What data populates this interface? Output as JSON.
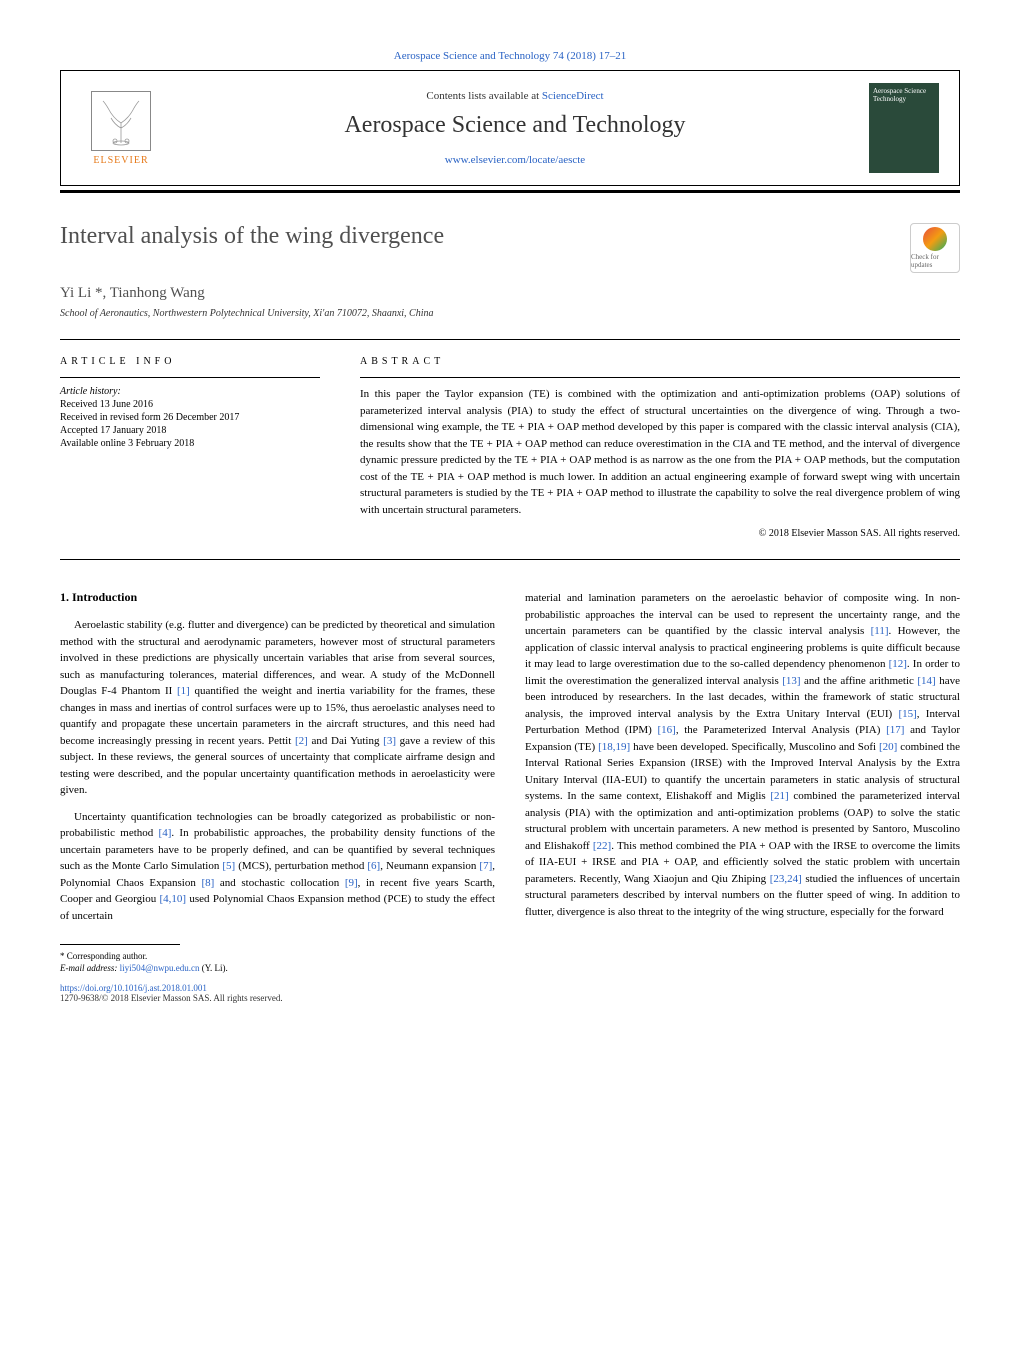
{
  "top_citation": "Aerospace Science and Technology 74 (2018) 17–21",
  "header": {
    "elsevier_label": "ELSEVIER",
    "contents_prefix": "Contents lists available at ",
    "contents_link": "ScienceDirect",
    "journal_name": "Aerospace Science and Technology",
    "journal_url": "www.elsevier.com/locate/aescte",
    "cover_text": "Aerospace Science Technology"
  },
  "crossmark": {
    "label": "Check for updates"
  },
  "article": {
    "title": "Interval analysis of the wing divergence",
    "authors": "Yi Li *, Tianhong Wang",
    "affiliation": "School of Aeronautics, Northwestern Polytechnical University, Xi'an 710072, Shaanxi, China"
  },
  "info": {
    "heading": "ARTICLE INFO",
    "history_label": "Article history:",
    "received": "Received 13 June 2016",
    "revised": "Received in revised form 26 December 2017",
    "accepted": "Accepted 17 January 2018",
    "online": "Available online 3 February 2018"
  },
  "abstract": {
    "heading": "ABSTRACT",
    "text": "In this paper the Taylor expansion (TE) is combined with the optimization and anti-optimization problems (OAP) solutions of parameterized interval analysis (PIA) to study the effect of structural uncertainties on the divergence of wing. Through a two-dimensional wing example, the TE + PIA + OAP method developed by this paper is compared with the classic interval analysis (CIA), the results show that the TE + PIA + OAP method can reduce overestimation in the CIA and TE method, and the interval of divergence dynamic pressure predicted by the TE + PIA + OAP method is as narrow as the one from the PIA + OAP methods, but the computation cost of the TE + PIA + OAP method is much lower. In addition an actual engineering example of forward swept wing with uncertain structural parameters is studied by the TE + PIA + OAP method to illustrate the capability to solve the real divergence problem of wing with uncertain structural parameters.",
    "copyright": "© 2018 Elsevier Masson SAS. All rights reserved."
  },
  "body": {
    "section1_heading": "1. Introduction",
    "left_p1": "Aeroelastic stability (e.g. flutter and divergence) can be predicted by theoretical and simulation method with the structural and aerodynamic parameters, however most of structural parameters involved in these predictions are physically uncertain variables that arise from several sources, such as manufacturing tolerances, material differences, and wear. A study of the McDonnell Douglas F-4 Phantom II [1] quantified the weight and inertia variability for the frames, these changes in mass and inertias of control surfaces were up to 15%, thus aeroelastic analyses need to quantify and propagate these uncertain parameters in the aircraft structures, and this need had become increasingly pressing in recent years. Pettit [2] and Dai Yuting [3] gave a review of this subject. In these reviews, the general sources of uncertainty that complicate airframe design and testing were described, and the popular uncertainty quantification methods in aeroelasticity were given.",
    "left_p2": "Uncertainty quantification technologies can be broadly categorized as probabilistic or non-probabilistic method [4]. In probabilistic approaches, the probability density functions of the uncertain parameters have to be properly defined, and can be quantified by several techniques such as the Monte Carlo Simulation [5] (MCS), perturbation method [6], Neumann expansion [7], Polynomial Chaos Expansion [8] and stochastic collocation [9], in recent five years Scarth, Cooper and Georgiou [4,10] used Polynomial Chaos Expansion method (PCE) to study the effect of uncertain",
    "right_p1": "material and lamination parameters on the aeroelastic behavior of composite wing. In non-probabilistic approaches the interval can be used to represent the uncertainty range, and the uncertain parameters can be quantified by the classic interval analysis [11]. However, the application of classic interval analysis to practical engineering problems is quite difficult because it may lead to large overestimation due to the so-called dependency phenomenon [12]. In order to limit the overestimation the generalized interval analysis [13] and the affine arithmetic [14] have been introduced by researchers. In the last decades, within the framework of static structural analysis, the improved interval analysis by the Extra Unitary Interval (EUI) [15], Interval Perturbation Method (IPM) [16], the Parameterized Interval Analysis (PIA) [17] and Taylor Expansion (TE) [18,19] have been developed. Specifically, Muscolino and Sofi [20] combined the Interval Rational Series Expansion (IRSE) with the Improved Interval Analysis by the Extra Unitary Interval (IIA-EUI) to quantify the uncertain parameters in static analysis of structural systems. In the same context, Elishakoff and Miglis [21] combined the parameterized interval analysis (PIA) with the optimization and anti-optimization problems (OAP) to solve the static structural problem with uncertain parameters. A new method is presented by Santoro, Muscolino and Elishakoff [22]. This method combined the PIA + OAP with the IRSE to overcome the limits of IIA-EUI + IRSE and PIA + OAP, and efficiently solved the static problem with uncertain parameters. Recently, Wang Xiaojun and Qiu Zhiping [23,24] studied the influences of uncertain structural parameters described by interval numbers on the flutter speed of wing. In addition to flutter, divergence is also threat to the integrity of the wing structure, especially for the forward"
  },
  "footnotes": {
    "corr_label": "* Corresponding author.",
    "email_label": "E-mail address: ",
    "email": "liyi504@nwpu.edu.cn",
    "email_suffix": " (Y. Li)."
  },
  "footer": {
    "doi": "https://doi.org/10.1016/j.ast.2018.01.001",
    "issn_copy": "1270-9638/© 2018 Elsevier Masson SAS. All rights reserved."
  },
  "colors": {
    "link": "#2962c4",
    "elsevier_orange": "#e67817",
    "heading_gray": "#505050",
    "cover_bg": "#2a4a3a"
  }
}
